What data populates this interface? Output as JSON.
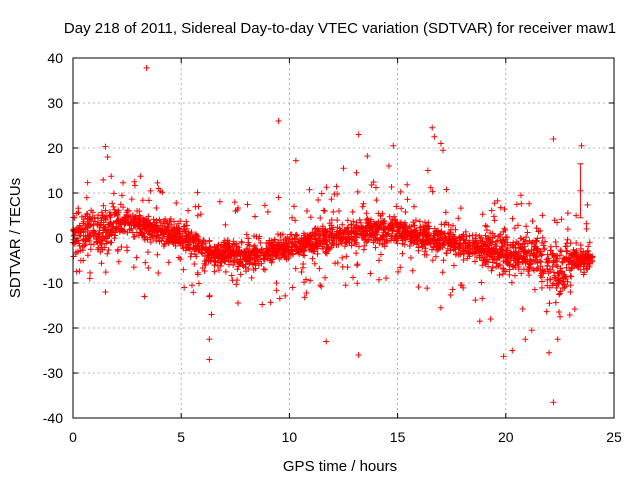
{
  "chart_data": {
    "type": "scatter",
    "title": "Day 218 of 2011, Sidereal Day-to-day VTEC variation (SDTVAR) for receiver maw1",
    "xlabel": "GPS time / hours",
    "ylabel": "SDTVAR / TECUs",
    "xlim": [
      0,
      25
    ],
    "ylim": [
      -40,
      40
    ],
    "xticks": [
      0,
      5,
      10,
      15,
      20,
      25
    ],
    "yticks": [
      -40,
      -30,
      -20,
      -10,
      0,
      10,
      20,
      30,
      40
    ],
    "grid": true,
    "marker": "+",
    "color": "#ff0000",
    "baseline_trend": [
      {
        "x": 0.0,
        "y": 0.5
      },
      {
        "x": 0.4,
        "y": 1.0
      },
      {
        "x": 0.8,
        "y": 2.0
      },
      {
        "x": 1.2,
        "y": 0.5
      },
      {
        "x": 1.8,
        "y": 3.0
      },
      {
        "x": 2.5,
        "y": 4.0
      },
      {
        "x": 3.2,
        "y": 2.5
      },
      {
        "x": 4.0,
        "y": 1.5
      },
      {
        "x": 5.0,
        "y": 0.5
      },
      {
        "x": 5.8,
        "y": -1.5
      },
      {
        "x": 6.5,
        "y": -4.0
      },
      {
        "x": 7.2,
        "y": -3.0
      },
      {
        "x": 8.0,
        "y": -4.5
      },
      {
        "x": 9.0,
        "y": -3.0
      },
      {
        "x": 10.0,
        "y": -2.0
      },
      {
        "x": 11.0,
        "y": -1.0
      },
      {
        "x": 12.0,
        "y": 0.5
      },
      {
        "x": 13.0,
        "y": 1.0
      },
      {
        "x": 14.0,
        "y": 2.0
      },
      {
        "x": 15.0,
        "y": 1.5
      },
      {
        "x": 16.0,
        "y": 0.5
      },
      {
        "x": 17.0,
        "y": -0.5
      },
      {
        "x": 18.0,
        "y": -1.5
      },
      {
        "x": 19.0,
        "y": -2.5
      },
      {
        "x": 20.0,
        "y": -3.5
      },
      {
        "x": 21.0,
        "y": -4.0
      },
      {
        "x": 21.5,
        "y": -3.0
      },
      {
        "x": 22.0,
        "y": -7.0
      },
      {
        "x": 22.5,
        "y": -8.0
      },
      {
        "x": 23.0,
        "y": -5.0
      },
      {
        "x": 23.5,
        "y": -4.5
      },
      {
        "x": 24.0,
        "y": -4.0
      }
    ],
    "outliers": [
      {
        "x": 3.4,
        "y": 37.8
      },
      {
        "x": 9.5,
        "y": 26.0
      },
      {
        "x": 16.6,
        "y": 24.5
      },
      {
        "x": 16.7,
        "y": 22.5
      },
      {
        "x": 13.2,
        "y": 23.0
      },
      {
        "x": 22.2,
        "y": 22.0
      },
      {
        "x": 23.5,
        "y": 20.5
      },
      {
        "x": 1.5,
        "y": 20.3
      },
      {
        "x": 14.8,
        "y": 20.5
      },
      {
        "x": 17.0,
        "y": 21.0
      },
      {
        "x": 17.1,
        "y": 19.5
      },
      {
        "x": 13.6,
        "y": 18.2
      },
      {
        "x": 1.6,
        "y": 18.0
      },
      {
        "x": 10.3,
        "y": 17.2
      },
      {
        "x": 12.5,
        "y": 15.5
      },
      {
        "x": 14.6,
        "y": 16.0
      },
      {
        "x": 16.4,
        "y": 15.0
      },
      {
        "x": 13.1,
        "y": 14.5
      },
      {
        "x": 3.3,
        "y": -13.0
      },
      {
        "x": 6.3,
        "y": -13.0
      },
      {
        "x": 6.4,
        "y": -17.0
      },
      {
        "x": 6.3,
        "y": -22.5
      },
      {
        "x": 6.3,
        "y": -27.0
      },
      {
        "x": 11.7,
        "y": -23.0
      },
      {
        "x": 13.2,
        "y": -26.0
      },
      {
        "x": 1.5,
        "y": -12.0
      },
      {
        "x": 19.9,
        "y": -26.3
      },
      {
        "x": 20.3,
        "y": -25.0
      },
      {
        "x": 20.9,
        "y": -22.5
      },
      {
        "x": 22.0,
        "y": -25.5
      },
      {
        "x": 22.2,
        "y": -36.5
      },
      {
        "x": 21.2,
        "y": -20.5
      },
      {
        "x": 22.4,
        "y": -22.5
      },
      {
        "x": 5.5,
        "y": -10.5
      },
      {
        "x": 9.4,
        "y": -10.0
      },
      {
        "x": 12.6,
        "y": -10.5
      },
      {
        "x": 17.0,
        "y": -15.5
      },
      {
        "x": 18.8,
        "y": -18.5
      },
      {
        "x": 19.3,
        "y": -18.0
      },
      {
        "x": 20.7,
        "y": 9.5
      },
      {
        "x": 9.5,
        "y": 9.0
      },
      {
        "x": 5.8,
        "y": 7.0
      }
    ],
    "error_bar": {
      "x": 23.45,
      "y": 10.5,
      "low": 4.5,
      "high": 16.5
    }
  }
}
